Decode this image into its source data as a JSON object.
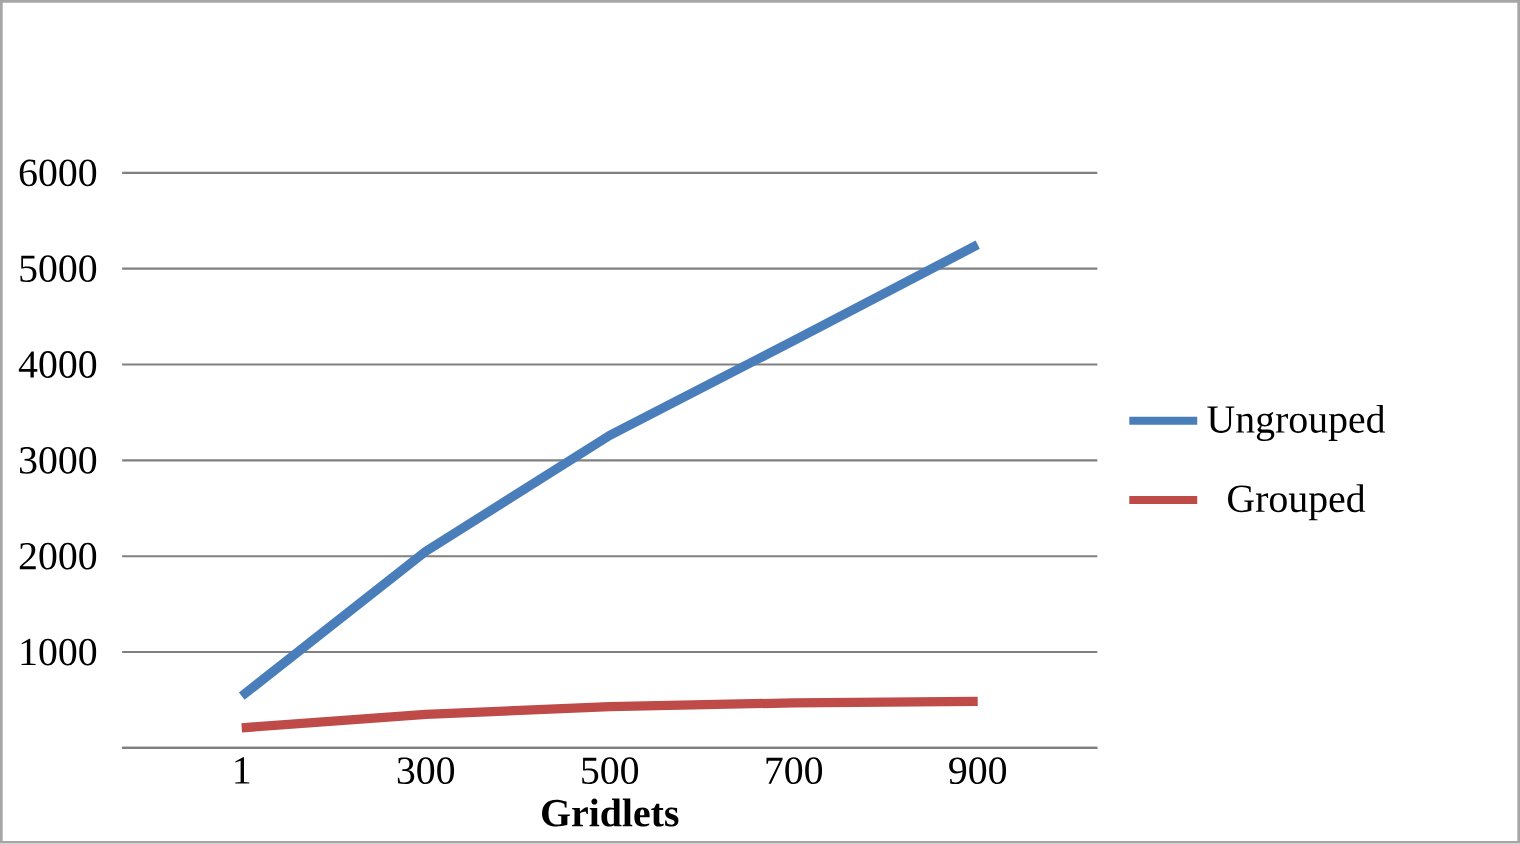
{
  "chart_data": {
    "type": "line",
    "xlabel": "Gridlets",
    "categories": [
      "1",
      "300",
      "500",
      "700",
      "900"
    ],
    "series": [
      {
        "name": "Ungrouped",
        "color": "#4a7ebb",
        "values": [
          540,
          2050,
          3260,
          4250,
          5250
        ]
      },
      {
        "name": "Grouped",
        "color": "#be4b48",
        "values": [
          210,
          350,
          430,
          470,
          485
        ]
      }
    ],
    "ylim": [
      0,
      6000
    ],
    "yticks": [
      {
        "value": 0,
        "label": null
      },
      1000,
      2000,
      3000,
      4000,
      5000,
      6000
    ],
    "grid": "y",
    "legend": "right",
    "marker": "none",
    "line_style": "solid"
  }
}
